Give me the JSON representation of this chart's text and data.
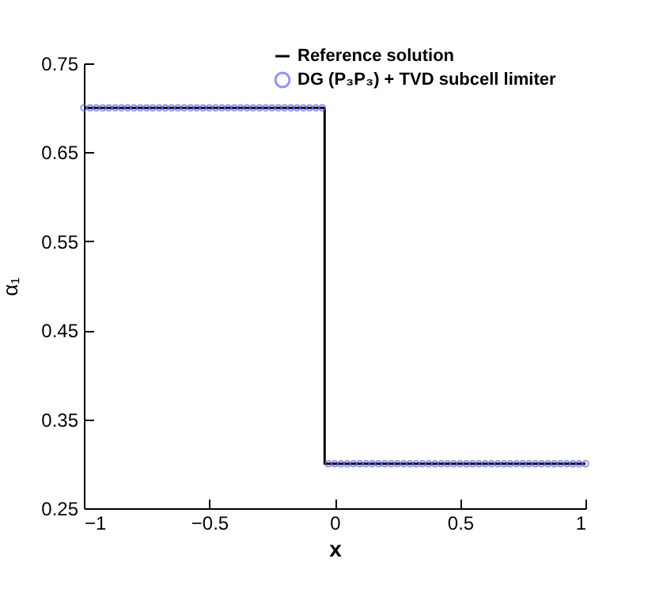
{
  "chart_data": {
    "type": "line",
    "xlabel": "x",
    "ylabel": "α₁",
    "xlim": [
      -1,
      1
    ],
    "xticks": [
      -1,
      -0.5,
      0,
      0.5,
      1
    ],
    "ylim": [
      0.25,
      0.75
    ],
    "yticks": [
      0.25,
      0.35,
      0.45,
      0.55,
      0.65,
      0.75
    ],
    "grid": false,
    "legend": "top right",
    "series": [
      {
        "name": "Reference solution",
        "color": "#000000",
        "x": [
          -1,
          -0.04,
          -0.04,
          1
        ],
        "values": [
          0.7,
          0.7,
          0.3,
          0.3
        ]
      },
      {
        "name": "DG (P₃P₃) + TVD subcell limiter",
        "type": "scatter",
        "marker": "circle",
        "color": "#6666ff",
        "x": [
          -1,
          -0.975,
          -0.95,
          -0.925,
          -0.9,
          -0.875,
          -0.85,
          -0.825,
          -0.8,
          -0.775,
          -0.75,
          -0.725,
          -0.7,
          -0.675,
          -0.65,
          -0.625,
          -0.6,
          -0.575,
          -0.55,
          -0.525,
          -0.5,
          -0.475,
          -0.45,
          -0.425,
          -0.4,
          -0.375,
          -0.35,
          -0.325,
          -0.3,
          -0.275,
          -0.25,
          -0.225,
          -0.2,
          -0.175,
          -0.15,
          -0.125,
          -0.1,
          -0.075,
          -0.05,
          -0.025,
          0,
          0.025,
          0.05,
          0.075,
          0.1,
          0.125,
          0.15,
          0.175,
          0.2,
          0.225,
          0.25,
          0.275,
          0.3,
          0.325,
          0.35,
          0.375,
          0.4,
          0.425,
          0.45,
          0.475,
          0.5,
          0.525,
          0.55,
          0.575,
          0.6,
          0.625,
          0.65,
          0.675,
          0.7,
          0.725,
          0.75,
          0.775,
          0.8,
          0.825,
          0.85,
          0.875,
          0.9,
          0.925,
          0.95,
          0.975,
          1
        ],
        "values": [
          0.7,
          0.7,
          0.7,
          0.7,
          0.7,
          0.7,
          0.7,
          0.7,
          0.7,
          0.7,
          0.7,
          0.7,
          0.7,
          0.7,
          0.7,
          0.7,
          0.7,
          0.7,
          0.7,
          0.7,
          0.7,
          0.7,
          0.7,
          0.7,
          0.7,
          0.7,
          0.7,
          0.7,
          0.7,
          0.7,
          0.7,
          0.7,
          0.7,
          0.7,
          0.7,
          0.7,
          0.7,
          0.7,
          0.7,
          0.3,
          0.3,
          0.3,
          0.3,
          0.3,
          0.3,
          0.3,
          0.3,
          0.3,
          0.3,
          0.3,
          0.3,
          0.3,
          0.3,
          0.3,
          0.3,
          0.3,
          0.3,
          0.3,
          0.3,
          0.3,
          0.3,
          0.3,
          0.3,
          0.3,
          0.3,
          0.3,
          0.3,
          0.3,
          0.3,
          0.3,
          0.3,
          0.3,
          0.3,
          0.3,
          0.3,
          0.3,
          0.3,
          0.3,
          0.3,
          0.3,
          0.3
        ]
      }
    ]
  }
}
